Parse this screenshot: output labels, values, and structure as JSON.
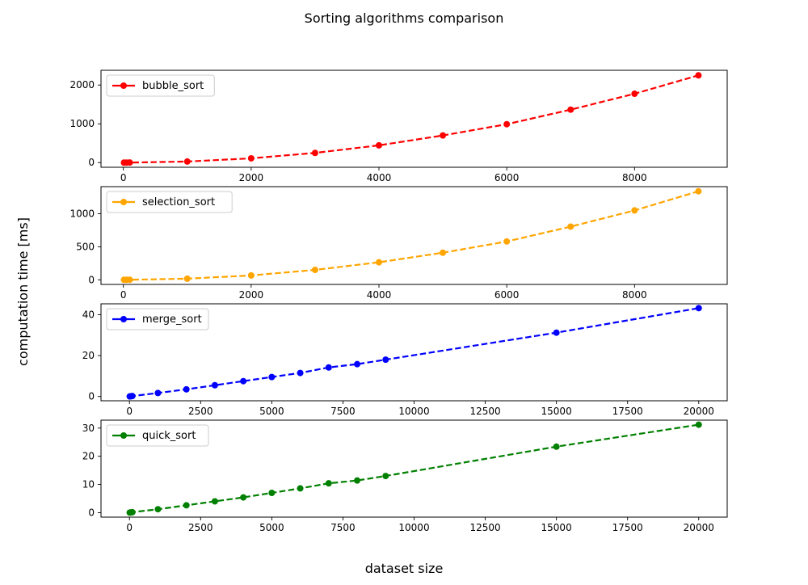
{
  "figure": {
    "suptitle": "Sorting algorithms comparison",
    "xlabel": "dataset size",
    "ylabel": "computation time [ms]"
  },
  "chart_data": [
    {
      "type": "line",
      "series": [
        {
          "name": "bubble_sort",
          "color": "#ff0000",
          "linestyle": "dashed",
          "marker": "circle",
          "x": [
            10,
            50,
            100,
            1000,
            2000,
            3000,
            4000,
            5000,
            6000,
            7000,
            8000,
            9000
          ],
          "y": [
            0.01,
            0.3,
            1.2,
            28,
            110,
            250,
            445,
            700,
            990,
            1365,
            1775,
            2250
          ]
        }
      ],
      "xlim": [
        -350,
        9450
      ],
      "ylim": [
        -120,
        2380
      ],
      "xticks": [
        0,
        2000,
        4000,
        6000,
        8000
      ],
      "xtick_labels": [
        "0",
        "2000",
        "4000",
        "6000",
        "8000"
      ],
      "yticks": [
        0,
        1000,
        2000
      ],
      "ytick_labels": [
        "0",
        "1000",
        "2000"
      ],
      "legend": "upper left"
    },
    {
      "type": "line",
      "series": [
        {
          "name": "selection_sort",
          "color": "#ffa500",
          "linestyle": "dashed",
          "marker": "circle",
          "x": [
            10,
            50,
            100,
            1000,
            2000,
            3000,
            4000,
            5000,
            6000,
            7000,
            8000,
            9000
          ],
          "y": [
            0.01,
            0.2,
            0.7,
            17,
            66,
            150,
            265,
            410,
            580,
            805,
            1050,
            1340
          ]
        }
      ],
      "xlim": [
        -350,
        9450
      ],
      "ylim": [
        -70,
        1410
      ],
      "xticks": [
        0,
        2000,
        4000,
        6000,
        8000
      ],
      "xtick_labels": [
        "0",
        "2000",
        "4000",
        "6000",
        "8000"
      ],
      "yticks": [
        0,
        500,
        1000
      ],
      "ytick_labels": [
        "0",
        "500",
        "1000"
      ],
      "legend": "upper left"
    },
    {
      "type": "line",
      "series": [
        {
          "name": "merge_sort",
          "color": "#0000ff",
          "linestyle": "dashed",
          "marker": "circle",
          "x": [
            10,
            50,
            100,
            1000,
            2000,
            3000,
            4000,
            5000,
            6000,
            7000,
            8000,
            9000,
            15000,
            20000
          ],
          "y": [
            0.02,
            0.1,
            0.2,
            1.7,
            3.5,
            5.5,
            7.5,
            9.5,
            11.5,
            14.2,
            15.8,
            18,
            31.2,
            43.2
          ]
        }
      ],
      "xlim": [
        -1000,
        21000
      ],
      "ylim": [
        -2.1,
        45.3
      ],
      "xticks": [
        0,
        2500,
        5000,
        7500,
        10000,
        12500,
        15000,
        17500,
        20000
      ],
      "xtick_labels": [
        "0",
        "2500",
        "5000",
        "7500",
        "10000",
        "12500",
        "15000",
        "17500",
        "20000"
      ],
      "yticks": [
        0,
        20,
        40
      ],
      "ytick_labels": [
        "0",
        "20",
        "40"
      ],
      "legend": "upper left"
    },
    {
      "type": "line",
      "series": [
        {
          "name": "quick_sort",
          "color": "#008000",
          "linestyle": "dashed",
          "marker": "circle",
          "x": [
            10,
            50,
            100,
            1000,
            2000,
            3000,
            4000,
            5000,
            6000,
            7000,
            8000,
            9000,
            15000,
            20000
          ],
          "y": [
            0.01,
            0.08,
            0.15,
            1.2,
            2.6,
            4.0,
            5.4,
            7.0,
            8.6,
            10.4,
            11.4,
            13.0,
            23.4,
            31.2
          ]
        }
      ],
      "xlim": [
        -1000,
        21000
      ],
      "ylim": [
        -1.6,
        32.8
      ],
      "xticks": [
        0,
        2500,
        5000,
        7500,
        10000,
        12500,
        15000,
        17500,
        20000
      ],
      "xtick_labels": [
        "0",
        "2500",
        "5000",
        "7500",
        "10000",
        "12500",
        "15000",
        "17500",
        "20000"
      ],
      "yticks": [
        0,
        10,
        20,
        30
      ],
      "ytick_labels": [
        "0",
        "10",
        "20",
        "30"
      ],
      "legend": "upper left"
    }
  ]
}
